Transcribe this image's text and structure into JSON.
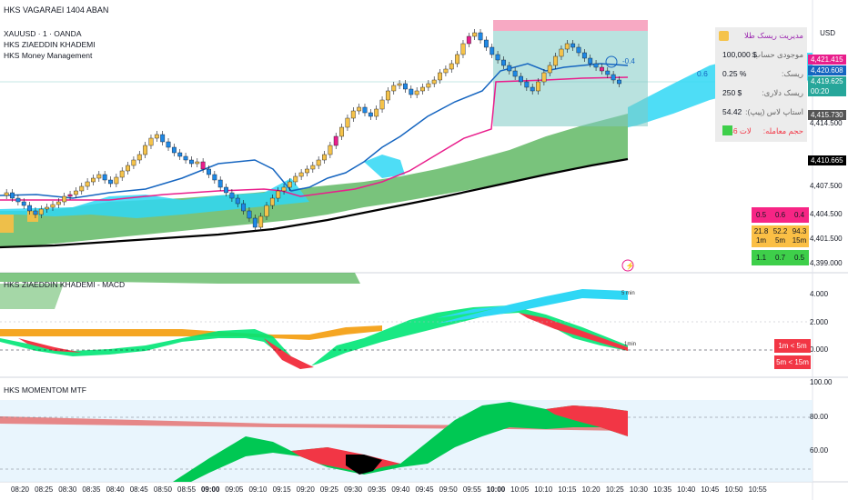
{
  "app_title": "HKS VAGARAEI 1404 ABAN",
  "legend": {
    "symbol": "XAUUSD · 1 · OANDA",
    "indicator_1": "HKS ZIAEDDIN KHADEMI",
    "indicator_2": "HKS Money Management"
  },
  "currency": "USD",
  "price_axis": [
    "4,414.500",
    "4,410.665",
    "4,407.500",
    "4,404.500",
    "4,401.500",
    "4,399.000"
  ],
  "price_tags": {
    "pink": "4,421.415",
    "blue": "4,420.608",
    "teal": "4,419.625",
    "countdown": "00:20",
    "gray": "4,415.730",
    "black": "4,410.665"
  },
  "trade_label": "-0.4",
  "risk_panel": {
    "title": "مدیریت ریسک طلا",
    "rows": [
      {
        "label": "موجودی حساب:",
        "value": "100,000 $"
      },
      {
        "label": "ریسک:",
        "value": "0.25 %"
      },
      {
        "label": "ریسک دلاری:",
        "value": "250 $"
      },
      {
        "label": "استاپ لاس (پیپ):",
        "value": "54.42"
      },
      {
        "label": "حجم معامله:",
        "value": "0.46 لات"
      }
    ],
    "ghost_value": "0.6"
  },
  "mtf_grid": {
    "row1": [
      "0.5",
      "0.6",
      "0.4"
    ],
    "row2": [
      {
        "v": "21.8",
        "tf": "1m"
      },
      {
        "v": "52.2",
        "tf": "5m"
      },
      {
        "v": "94.3",
        "tf": "15m"
      }
    ],
    "row3": [
      "1.1",
      "0.7",
      "0.5"
    ]
  },
  "macd_panel": {
    "title": "HKS ZIAEDDIN KHADEMI - MACD",
    "axis": [
      "4.000",
      "2.000",
      "0.000"
    ],
    "label_5min": "5 min",
    "label_1min": "1min",
    "alert_1": "1m < 5m",
    "alert_2": "5m < 15m"
  },
  "momentum_panel": {
    "title": "HKS MOMENTOM MTF",
    "axis": [
      "100.00",
      "80.00",
      "60.00"
    ]
  },
  "time_axis": [
    "08:20",
    "08:25",
    "08:30",
    "08:35",
    "08:40",
    "08:45",
    "08:50",
    "08:55",
    "09:00",
    "09:05",
    "09:10",
    "09:15",
    "09:20",
    "09:25",
    "09:30",
    "09:35",
    "09:40",
    "09:45",
    "09:50",
    "09:55",
    "10:00",
    "10:05",
    "10:10",
    "10:15",
    "10:20",
    "10:25",
    "10:30",
    "10:35",
    "10:40",
    "10:45",
    "10:50",
    "10:55"
  ],
  "colors": {
    "up_candle": "#f5c34a",
    "down_candle": "#1e88e5",
    "magenta_line": "#e91e8c",
    "blue_line": "#1565c0",
    "cloud_green": "#4caf50",
    "cloud_cyan": "#2fd7f5",
    "alert_red": "#f23645"
  }
}
